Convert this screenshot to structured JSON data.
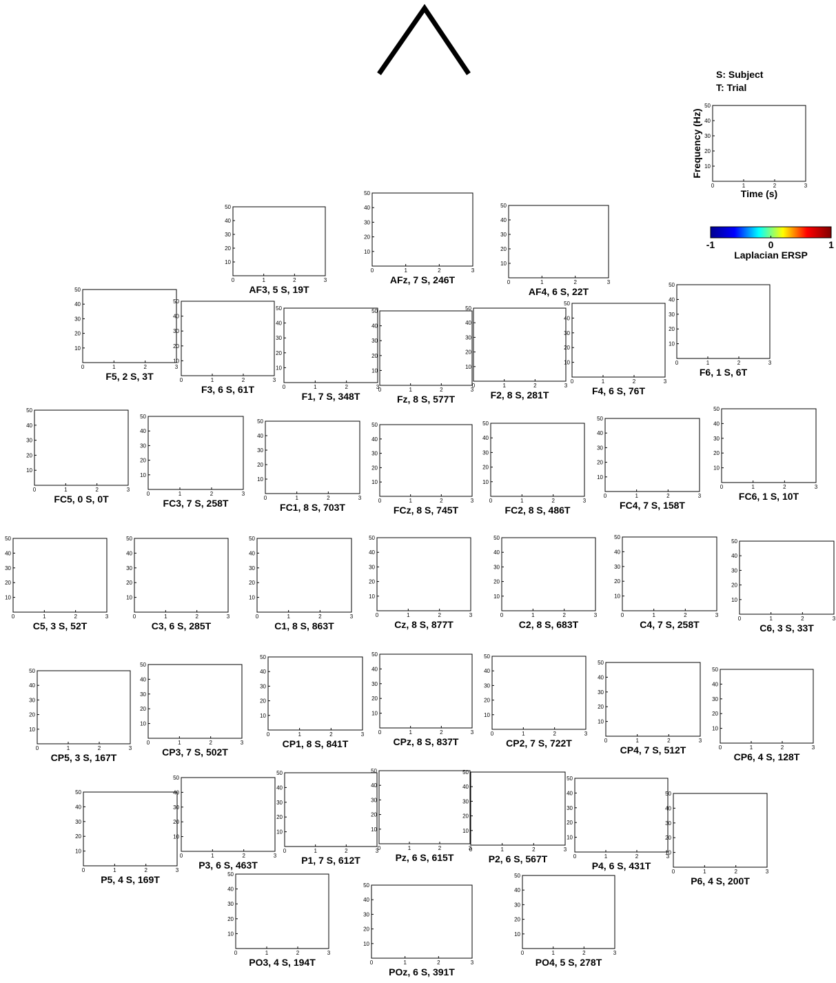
{
  "chart_data": [
    {
      "type": "heatmap",
      "title": "AF3, 5 S, 19T",
      "xlim": [
        0,
        3
      ],
      "xticks": [
        0,
        1,
        2,
        3
      ],
      "ylim": [
        0,
        50
      ],
      "yticks": [
        10,
        20,
        30,
        40,
        50
      ]
    },
    {
      "type": "heatmap",
      "title": "AFz, 7 S, 246T",
      "xlim": [
        0,
        3
      ],
      "xticks": [
        0,
        1,
        2,
        3
      ],
      "ylim": [
        0,
        50
      ],
      "yticks": [
        10,
        20,
        30,
        40,
        50
      ]
    },
    {
      "type": "heatmap",
      "title": "AF4, 6 S, 22T",
      "xlim": [
        0,
        3
      ],
      "xticks": [
        0,
        1,
        2,
        3
      ],
      "ylim": [
        0,
        50
      ],
      "yticks": [
        10,
        20,
        30,
        40,
        50
      ]
    },
    {
      "type": "heatmap",
      "title": "F5, 2 S, 3T",
      "xlim": [
        0,
        3
      ],
      "xticks": [
        0,
        1,
        2,
        3
      ],
      "ylim": [
        0,
        50
      ],
      "yticks": [
        10,
        20,
        30,
        40,
        50
      ]
    },
    {
      "type": "heatmap",
      "title": "F3, 6 S, 61T",
      "xlim": [
        0,
        3
      ],
      "xticks": [
        0,
        1,
        2,
        3
      ],
      "ylim": [
        0,
        50
      ],
      "yticks": [
        10,
        20,
        30,
        40,
        50
      ]
    },
    {
      "type": "heatmap",
      "title": "F1, 7 S, 348T",
      "xlim": [
        0,
        3
      ],
      "xticks": [
        0,
        1,
        2,
        3
      ],
      "ylim": [
        0,
        50
      ],
      "yticks": [
        10,
        20,
        30,
        40,
        50
      ]
    },
    {
      "type": "heatmap",
      "title": "Fz, 8 S, 577T",
      "xlim": [
        0,
        3
      ],
      "xticks": [
        0,
        1,
        2,
        3
      ],
      "ylim": [
        0,
        50
      ],
      "yticks": [
        10,
        20,
        30,
        40,
        50
      ]
    },
    {
      "type": "heatmap",
      "title": "F2, 8 S, 281T",
      "xlim": [
        0,
        3
      ],
      "xticks": [
        0,
        1,
        2,
        3
      ],
      "ylim": [
        0,
        50
      ],
      "yticks": [
        10,
        20,
        30,
        40,
        50
      ]
    },
    {
      "type": "heatmap",
      "title": "F4, 6 S, 76T",
      "xlim": [
        0,
        3
      ],
      "xticks": [
        0,
        1,
        2,
        3
      ],
      "ylim": [
        0,
        50
      ],
      "yticks": [
        10,
        20,
        30,
        40,
        50
      ]
    },
    {
      "type": "heatmap",
      "title": "F6, 1 S, 6T",
      "xlim": [
        0,
        3
      ],
      "xticks": [
        0,
        1,
        2,
        3
      ],
      "ylim": [
        0,
        50
      ],
      "yticks": [
        10,
        20,
        30,
        40,
        50
      ]
    },
    {
      "type": "heatmap",
      "title": "FC5, 0 S, 0T",
      "xlim": [
        0,
        3
      ],
      "xticks": [
        0,
        1,
        2,
        3
      ],
      "ylim": [
        0,
        50
      ],
      "yticks": [
        10,
        20,
        30,
        40,
        50
      ]
    },
    {
      "type": "heatmap",
      "title": "FC3, 7 S, 258T",
      "xlim": [
        0,
        3
      ],
      "xticks": [
        0,
        1,
        2,
        3
      ],
      "ylim": [
        0,
        50
      ],
      "yticks": [
        10,
        20,
        30,
        40,
        50
      ]
    },
    {
      "type": "heatmap",
      "title": "FC1, 8 S, 703T",
      "xlim": [
        0,
        3
      ],
      "xticks": [
        0,
        1,
        2,
        3
      ],
      "ylim": [
        0,
        50
      ],
      "yticks": [
        10,
        20,
        30,
        40,
        50
      ]
    },
    {
      "type": "heatmap",
      "title": "FCz, 8 S, 745T",
      "xlim": [
        0,
        3
      ],
      "xticks": [
        0,
        1,
        2,
        3
      ],
      "ylim": [
        0,
        50
      ],
      "yticks": [
        10,
        20,
        30,
        40,
        50
      ]
    },
    {
      "type": "heatmap",
      "title": "FC2, 8 S, 486T",
      "xlim": [
        0,
        3
      ],
      "xticks": [
        0,
        1,
        2,
        3
      ],
      "ylim": [
        0,
        50
      ],
      "yticks": [
        10,
        20,
        30,
        40,
        50
      ]
    },
    {
      "type": "heatmap",
      "title": "FC4, 7 S, 158T",
      "xlim": [
        0,
        3
      ],
      "xticks": [
        0,
        1,
        2,
        3
      ],
      "ylim": [
        0,
        50
      ],
      "yticks": [
        10,
        20,
        30,
        40,
        50
      ]
    },
    {
      "type": "heatmap",
      "title": "FC6, 1 S, 10T",
      "xlim": [
        0,
        3
      ],
      "xticks": [
        0,
        1,
        2,
        3
      ],
      "ylim": [
        0,
        50
      ],
      "yticks": [
        10,
        20,
        30,
        40,
        50
      ]
    },
    {
      "type": "heatmap",
      "title": "C5, 3 S, 52T",
      "xlim": [
        0,
        3
      ],
      "xticks": [
        0,
        1,
        2,
        3
      ],
      "ylim": [
        0,
        50
      ],
      "yticks": [
        10,
        20,
        30,
        40,
        50
      ]
    },
    {
      "type": "heatmap",
      "title": "C3, 6 S, 285T",
      "xlim": [
        0,
        3
      ],
      "xticks": [
        0,
        1,
        2,
        3
      ],
      "ylim": [
        0,
        50
      ],
      "yticks": [
        10,
        20,
        30,
        40,
        50
      ]
    },
    {
      "type": "heatmap",
      "title": "C1, 8 S, 863T",
      "xlim": [
        0,
        3
      ],
      "xticks": [
        0,
        1,
        2,
        3
      ],
      "ylim": [
        0,
        50
      ],
      "yticks": [
        10,
        20,
        30,
        40,
        50
      ]
    },
    {
      "type": "heatmap",
      "title": "Cz, 8 S, 877T",
      "xlim": [
        0,
        3
      ],
      "xticks": [
        0,
        1,
        2,
        3
      ],
      "ylim": [
        0,
        50
      ],
      "yticks": [
        10,
        20,
        30,
        40,
        50
      ]
    },
    {
      "type": "heatmap",
      "title": "C2, 8 S, 683T",
      "xlim": [
        0,
        3
      ],
      "xticks": [
        0,
        1,
        2,
        3
      ],
      "ylim": [
        0,
        50
      ],
      "yticks": [
        10,
        20,
        30,
        40,
        50
      ]
    },
    {
      "type": "heatmap",
      "title": "C4, 7 S, 258T",
      "xlim": [
        0,
        3
      ],
      "xticks": [
        0,
        1,
        2,
        3
      ],
      "ylim": [
        0,
        50
      ],
      "yticks": [
        10,
        20,
        30,
        40,
        50
      ]
    },
    {
      "type": "heatmap",
      "title": "C6, 3 S, 33T",
      "xlim": [
        0,
        3
      ],
      "xticks": [
        0,
        1,
        2,
        3
      ],
      "ylim": [
        0,
        50
      ],
      "yticks": [
        10,
        20,
        30,
        40,
        50
      ]
    },
    {
      "type": "heatmap",
      "title": "CP5, 3 S, 167T",
      "xlim": [
        0,
        3
      ],
      "xticks": [
        0,
        1,
        2,
        3
      ],
      "ylim": [
        0,
        50
      ],
      "yticks": [
        10,
        20,
        30,
        40,
        50
      ]
    },
    {
      "type": "heatmap",
      "title": "CP3, 7 S, 502T",
      "xlim": [
        0,
        3
      ],
      "xticks": [
        0,
        1,
        2,
        3
      ],
      "ylim": [
        0,
        50
      ],
      "yticks": [
        10,
        20,
        30,
        40,
        50
      ]
    },
    {
      "type": "heatmap",
      "title": "CP1, 8 S, 841T",
      "xlim": [
        0,
        3
      ],
      "xticks": [
        0,
        1,
        2,
        3
      ],
      "ylim": [
        0,
        50
      ],
      "yticks": [
        10,
        20,
        30,
        40,
        50
      ]
    },
    {
      "type": "heatmap",
      "title": "CPz, 8 S, 837T",
      "xlim": [
        0,
        3
      ],
      "xticks": [
        0,
        1,
        2,
        3
      ],
      "ylim": [
        0,
        50
      ],
      "yticks": [
        10,
        20,
        30,
        40,
        50
      ]
    },
    {
      "type": "heatmap",
      "title": "CP2, 7 S, 722T",
      "xlim": [
        0,
        3
      ],
      "xticks": [
        0,
        1,
        2,
        3
      ],
      "ylim": [
        0,
        50
      ],
      "yticks": [
        10,
        20,
        30,
        40,
        50
      ]
    },
    {
      "type": "heatmap",
      "title": "CP4, 7 S, 512T",
      "xlim": [
        0,
        3
      ],
      "xticks": [
        0,
        1,
        2,
        3
      ],
      "ylim": [
        0,
        50
      ],
      "yticks": [
        10,
        20,
        30,
        40,
        50
      ]
    },
    {
      "type": "heatmap",
      "title": "CP6, 4 S, 128T",
      "xlim": [
        0,
        3
      ],
      "xticks": [
        0,
        1,
        2,
        3
      ],
      "ylim": [
        0,
        50
      ],
      "yticks": [
        10,
        20,
        30,
        40,
        50
      ]
    },
    {
      "type": "heatmap",
      "title": "P5, 4 S, 169T",
      "xlim": [
        0,
        3
      ],
      "xticks": [
        0,
        1,
        2,
        3
      ],
      "ylim": [
        0,
        50
      ],
      "yticks": [
        10,
        20,
        30,
        40,
        50
      ]
    },
    {
      "type": "heatmap",
      "title": "P3, 6 S, 463T",
      "xlim": [
        0,
        3
      ],
      "xticks": [
        0,
        1,
        2,
        3
      ],
      "ylim": [
        0,
        50
      ],
      "yticks": [
        10,
        20,
        30,
        40,
        50
      ]
    },
    {
      "type": "heatmap",
      "title": "P1, 7 S, 612T",
      "xlim": [
        0,
        3
      ],
      "xticks": [
        0,
        1,
        2,
        3
      ],
      "ylim": [
        0,
        50
      ],
      "yticks": [
        10,
        20,
        30,
        40,
        50
      ]
    },
    {
      "type": "heatmap",
      "title": "Pz, 6 S, 615T",
      "xlim": [
        0,
        3
      ],
      "xticks": [
        0,
        1,
        2,
        3
      ],
      "ylim": [
        0,
        50
      ],
      "yticks": [
        10,
        20,
        30,
        40,
        50
      ]
    },
    {
      "type": "heatmap",
      "title": "P2, 6 S, 567T",
      "xlim": [
        0,
        3
      ],
      "xticks": [
        0,
        1,
        2,
        3
      ],
      "ylim": [
        0,
        50
      ],
      "yticks": [
        10,
        20,
        30,
        40,
        50
      ]
    },
    {
      "type": "heatmap",
      "title": "P4, 6 S, 431T",
      "xlim": [
        0,
        3
      ],
      "xticks": [
        0,
        1,
        2,
        3
      ],
      "ylim": [
        0,
        50
      ],
      "yticks": [
        10,
        20,
        30,
        40,
        50
      ]
    },
    {
      "type": "heatmap",
      "title": "P6, 4 S, 200T",
      "xlim": [
        0,
        3
      ],
      "xticks": [
        0,
        1,
        2,
        3
      ],
      "ylim": [
        0,
        50
      ],
      "yticks": [
        10,
        20,
        30,
        40,
        50
      ]
    },
    {
      "type": "heatmap",
      "title": "PO3, 4 S, 194T",
      "xlim": [
        0,
        3
      ],
      "xticks": [
        0,
        1,
        2,
        3
      ],
      "ylim": [
        0,
        50
      ],
      "yticks": [
        10,
        20,
        30,
        40,
        50
      ]
    },
    {
      "type": "heatmap",
      "title": "POz, 6 S, 391T",
      "xlim": [
        0,
        3
      ],
      "xticks": [
        0,
        1,
        2,
        3
      ],
      "ylim": [
        0,
        50
      ],
      "yticks": [
        10,
        20,
        30,
        40,
        50
      ]
    },
    {
      "type": "heatmap",
      "title": "PO4, 5 S, 278T",
      "xlim": [
        0,
        3
      ],
      "xticks": [
        0,
        1,
        2,
        3
      ],
      "ylim": [
        0,
        50
      ],
      "yticks": [
        10,
        20,
        30,
        40,
        50
      ]
    },
    {
      "type": "heatmap",
      "annotations": [
        "S: Subject",
        "T: Trial"
      ],
      "xlabel": "Time (s)",
      "ylabel": "Frequency (Hz)",
      "xlim": [
        0,
        3
      ],
      "xticks": [
        0,
        1,
        2,
        3
      ],
      "ylim": [
        0,
        50
      ],
      "yticks": [
        10,
        20,
        30,
        40,
        50
      ]
    },
    {
      "type": "colorbar",
      "xlabel": "Laplacian ERSP",
      "xlim": [
        -1,
        1
      ],
      "xticks": [
        -1,
        0,
        1
      ],
      "colors": [
        "#00008f",
        "#0000ff",
        "#00ffff",
        "#ffff00",
        "#ff0000",
        "#800000"
      ]
    }
  ]
}
